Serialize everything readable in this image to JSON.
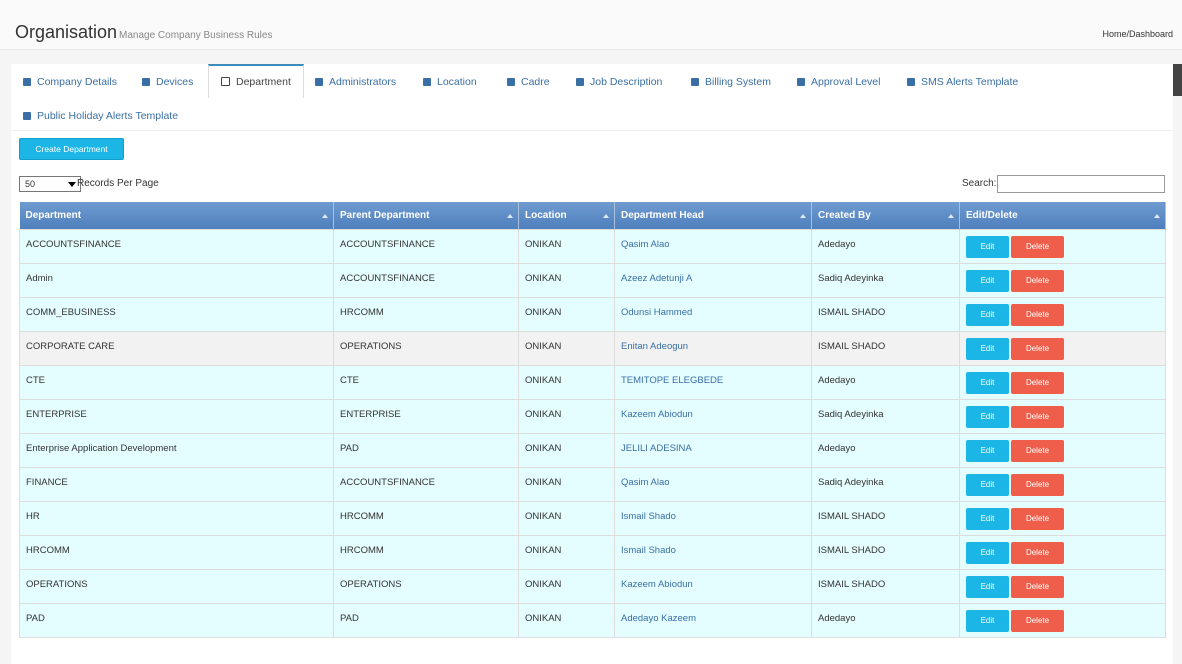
{
  "header": {
    "title": "Organisation",
    "subtitle": "Manage Company Business Rules",
    "breadcrumb": "Home/Dashboard"
  },
  "tabs": {
    "items": [
      "Company Details",
      "Devices",
      "Department",
      "Administrators",
      "Location",
      "Cadre",
      "Job Description",
      "Billing System",
      "Approval Level",
      "SMS Alerts Template",
      "Public Holiday Alerts Template"
    ],
    "active": 2
  },
  "toolbar": {
    "create_button": "Create Department",
    "page_size": "50",
    "page_size_label": "Records Per Page",
    "search_label": "Search:"
  },
  "table": {
    "columns": [
      "Department",
      "Parent Department",
      "Location",
      "Department Head",
      "Created By",
      "Edit/Delete"
    ],
    "actions": [
      "Edit",
      "Delete"
    ],
    "rows": [
      [
        "ACCOUNTSFINANCE",
        "ACCOUNTSFINANCE",
        "ONIKAN",
        "Qasim Alao",
        "Adedayo"
      ],
      [
        "Admin",
        "ACCOUNTSFINANCE",
        "ONIKAN",
        "Azeez Adetunji A",
        "Sadiq Adeyinka"
      ],
      [
        "COMM_EBUSINESS",
        "HRCOMM",
        "ONIKAN",
        "Odunsi Hammed",
        "ISMAIL SHADO"
      ],
      [
        "CORPORATE CARE",
        "OPERATIONS",
        "ONIKAN",
        "Enitan Adeogun",
        "ISMAIL SHADO"
      ],
      [
        "CTE",
        "CTE",
        "ONIKAN",
        "TEMITOPE ELEGBEDE",
        "Adedayo"
      ],
      [
        "ENTERPRISE",
        "ENTERPRISE",
        "ONIKAN",
        "Kazeem Abiodun",
        "Sadiq Adeyinka"
      ],
      [
        "Enterprise Application Development",
        "PAD",
        "ONIKAN",
        "JELILI ADESINA",
        "Adedayo"
      ],
      [
        "FINANCE",
        "ACCOUNTSFINANCE",
        "ONIKAN",
        "Qasim Alao",
        "Sadiq Adeyinka"
      ],
      [
        "HR",
        "HRCOMM",
        "ONIKAN",
        "Ismail Shado",
        "ISMAIL SHADO"
      ],
      [
        "HRCOMM",
        "HRCOMM",
        "ONIKAN",
        "Ismail Shado",
        "ISMAIL SHADO"
      ],
      [
        "OPERATIONS",
        "OPERATIONS",
        "ONIKAN",
        "Kazeem Abiodun",
        "ISMAIL SHADO"
      ],
      [
        "PAD",
        "PAD",
        "ONIKAN",
        "Adedayo Kazeem",
        "Adedayo"
      ]
    ]
  }
}
